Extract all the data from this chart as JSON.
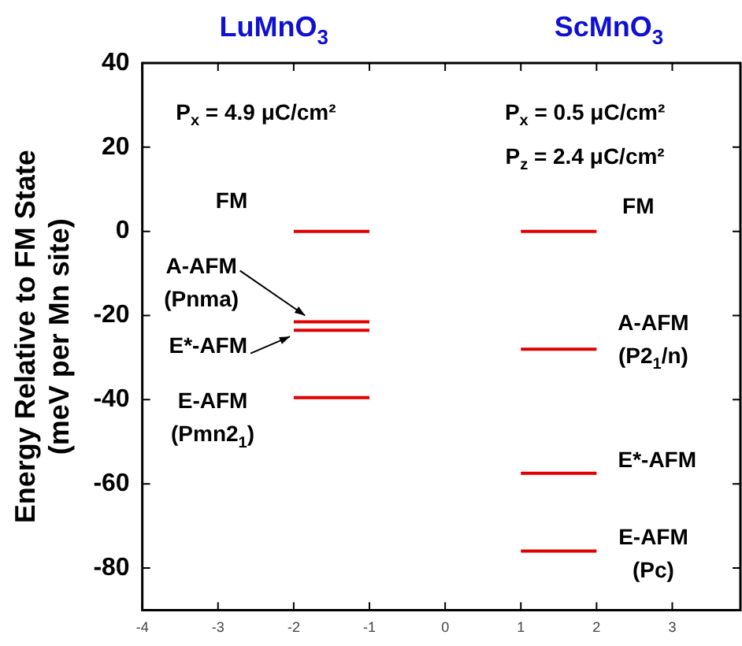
{
  "chart_data": {
    "type": "line",
    "ylabel": "Energy Relative to FM State\n(meV per Mn site)",
    "xlim": [
      -4,
      3.9
    ],
    "xticks": [
      -4,
      -3,
      -2,
      -1,
      0,
      1,
      2,
      3
    ],
    "ylim": [
      -90,
      40
    ],
    "yticks": [
      40,
      20,
      0,
      -20,
      -40,
      -60,
      -80
    ],
    "grid": false,
    "legend": false,
    "marker": "none",
    "line_style": "solid",
    "series": [
      {
        "color": "#e00000",
        "x": [
          -2,
          -1
        ],
        "values": [
          0,
          0
        ]
      },
      {
        "color": "#e00000",
        "x": [
          -2,
          -1
        ],
        "values": [
          -21.5,
          -21.5
        ]
      },
      {
        "color": "#e00000",
        "x": [
          -2,
          -1
        ],
        "values": [
          -23.5,
          -23.5
        ]
      },
      {
        "color": "#e00000",
        "x": [
          -2,
          -1
        ],
        "values": [
          -39.5,
          -39.5
        ]
      },
      {
        "color": "#e00000",
        "x": [
          1,
          2
        ],
        "values": [
          0,
          0
        ]
      },
      {
        "color": "#e00000",
        "x": [
          1,
          2
        ],
        "values": [
          -28,
          -28
        ]
      },
      {
        "color": "#e00000",
        "x": [
          1,
          2
        ],
        "values": [
          -57.5,
          -57.5
        ]
      },
      {
        "color": "#e00000",
        "x": [
          1,
          2
        ],
        "values": [
          -76,
          -76
        ]
      }
    ],
    "annotations": [
      "LuMnO$_{3}$",
      "ScMnO$_{3}$",
      "P$_{x}$ = 4.9 μC/cm²",
      "P$_{x}$ = 0.5 μC/cm²",
      "P$_{z}$ = 2.4 μC/cm²",
      "FM",
      {
        "text": "A-AFM\n(Pnma)",
        "x": -1.85,
        "y": -21.5
      },
      {
        "text": "E*-AFM",
        "x": -2.05,
        "y": -23.5
      },
      "E-AFM\n(Pmn2$_{1}$)",
      "FM",
      "A-AFM\n(P2$_{1}$/n)",
      "E*-AFM",
      "E-AFM\n(Pc)"
    ]
  }
}
